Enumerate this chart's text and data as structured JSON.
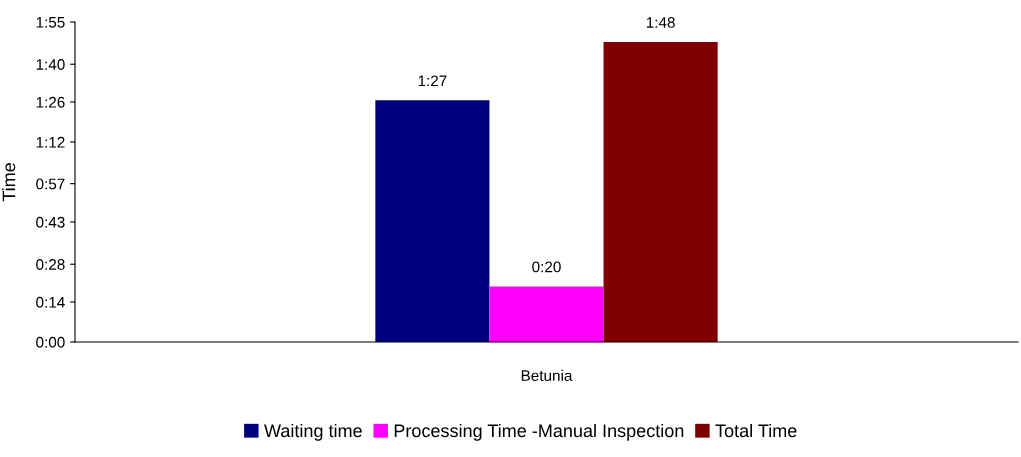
{
  "chart_data": {
    "type": "bar",
    "ylabel": "Time",
    "categories": [
      "Betunia"
    ],
    "series": [
      {
        "name": "Waiting time",
        "color": "#000080",
        "values": [
          87
        ],
        "value_labels": [
          "1:27"
        ]
      },
      {
        "name": "Processing Time -Manual Inspection",
        "color": "#ff00ff",
        "values": [
          20
        ],
        "value_labels": [
          "0:20"
        ]
      },
      {
        "name": "Total Time",
        "color": "#800000",
        "values": [
          108
        ],
        "value_labels": [
          "1:48"
        ]
      }
    ],
    "ylim": [
      0,
      115.2
    ],
    "yticks": [
      {
        "value": 0,
        "label": "0:00"
      },
      {
        "value": 14.4,
        "label": "0:14"
      },
      {
        "value": 28,
        "label": "0:28"
      },
      {
        "value": 43.2,
        "label": "0:43"
      },
      {
        "value": 57,
        "label": "0:57"
      },
      {
        "value": 72,
        "label": "1:12"
      },
      {
        "value": 86.4,
        "label": "1:26"
      },
      {
        "value": 100,
        "label": "1:40"
      },
      {
        "value": 115.2,
        "label": "1:55"
      }
    ],
    "grid": false,
    "legend": "bottom"
  }
}
